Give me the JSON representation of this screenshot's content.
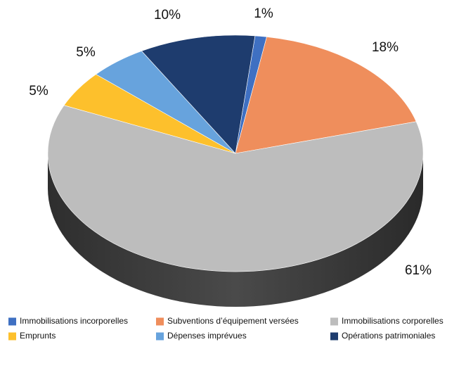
{
  "chart_data": {
    "type": "pie",
    "categories": [
      "Immobilisations incorporelles",
      "Subventions d’équipement versées",
      "Immobilisations corporelles",
      "Emprunts",
      "Dépenses imprévues",
      "Opérations patrimoniales"
    ],
    "values": [
      1,
      18,
      61,
      5,
      5,
      10
    ],
    "value_labels": [
      "1%",
      "18%",
      "61%",
      "5%",
      "5%",
      "10%"
    ],
    "colors": [
      "#3f70c2",
      "#ef8e5c",
      "#bdbdbd",
      "#fdc02c",
      "#67a3dd",
      "#1e3c6e"
    ],
    "legend": "bottom"
  }
}
